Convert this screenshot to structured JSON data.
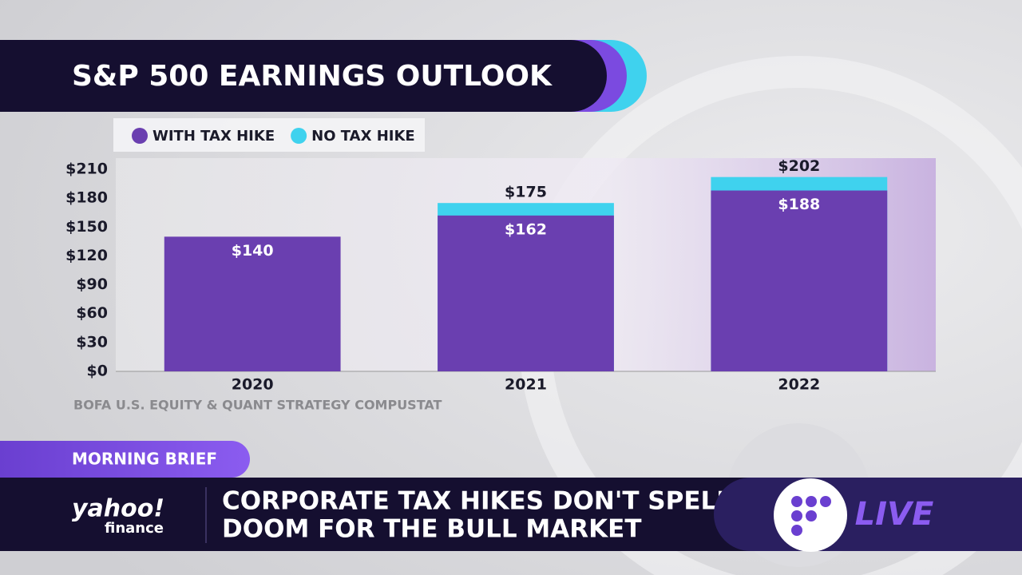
{
  "chart_data": {
    "type": "bar",
    "title": "S&P 500 EARNINGS OUTLOOK",
    "categories": [
      "2020",
      "2021",
      "2022"
    ],
    "series": [
      {
        "name": "WITH TAX HIKE",
        "color": "#6a3fb0",
        "values": [
          140,
          162,
          188
        ],
        "value_labels": [
          "$140",
          "$162",
          "$188"
        ]
      },
      {
        "name": "NO TAX HIKE",
        "color": "#3fd2ee",
        "values": [
          null,
          175,
          202
        ],
        "value_labels": [
          null,
          "$175",
          "$202"
        ]
      }
    ],
    "ylim": [
      0,
      220
    ],
    "yticks": [
      {
        "value": 0,
        "label": "$0"
      },
      {
        "value": 30,
        "label": "$30"
      },
      {
        "value": 60,
        "label": "$60"
      },
      {
        "value": 90,
        "label": "$90"
      },
      {
        "value": 120,
        "label": "$120"
      },
      {
        "value": 150,
        "label": "$150"
      },
      {
        "value": 180,
        "label": "$180"
      },
      {
        "value": 210,
        "label": "$210"
      }
    ],
    "grid": false,
    "source": "BOFA U.S. EQUITY & QUANT STRATEGY COMPUSTAT"
  },
  "broadcast": {
    "segment": "MORNING BRIEF",
    "headline": [
      "CORPORATE TAX HIKES DON'T SPELL",
      "DOOM FOR THE BULL MARKET"
    ],
    "logo": "yahoo!",
    "logo_sub": "finance",
    "live": "LIVE"
  }
}
